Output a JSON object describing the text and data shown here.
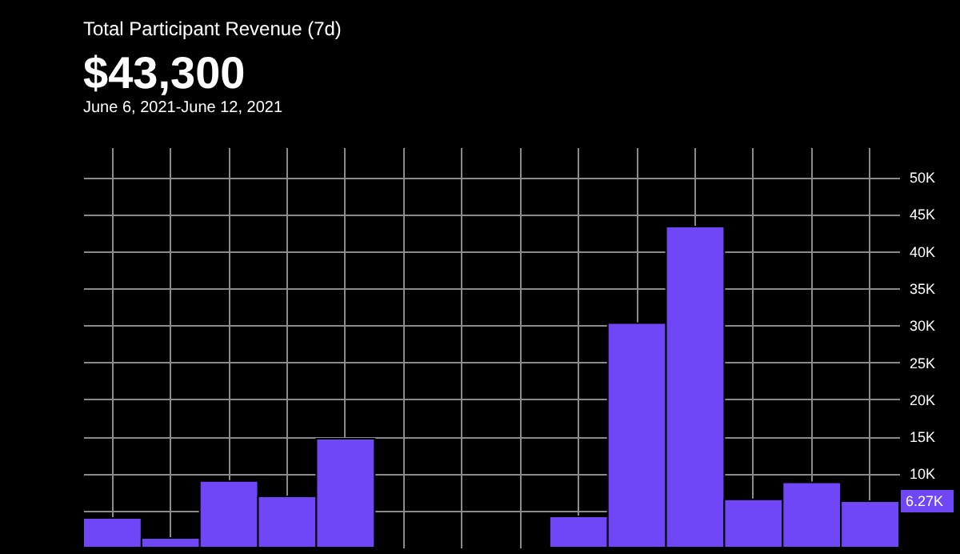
{
  "chart_data": {
    "type": "bar",
    "title": "Total Participant Revenue (7d)",
    "subtitle": "$43,300",
    "annotations": [
      "June 6, 2021-June 12, 2021",
      {
        "text": "6.27K",
        "y": 6270
      }
    ],
    "categories": [
      null,
      null,
      null,
      null,
      null,
      null,
      null,
      null,
      null,
      null,
      null,
      null,
      null,
      null
    ],
    "series": [
      {
        "color": "#7047f7",
        "values": [
          4000,
          1300,
          9000,
          6900,
          14700,
          null,
          null,
          null,
          4200,
          30300,
          43300,
          6500,
          8800,
          6270
        ]
      }
    ],
    "ylim": [
      0,
      54000
    ],
    "yticks": [
      {
        "value": 5000,
        "label": null
      },
      {
        "value": 10000,
        "label": "10K"
      },
      {
        "value": 15000,
        "label": "15K"
      },
      {
        "value": 20000,
        "label": "20K"
      },
      {
        "value": 25000,
        "label": "25K"
      },
      {
        "value": 30000,
        "label": "30K"
      },
      {
        "value": 35000,
        "label": "35K"
      },
      {
        "value": 40000,
        "label": "40K"
      },
      {
        "value": 45000,
        "label": "45K"
      },
      {
        "value": 50000,
        "label": "50K"
      }
    ],
    "grid": true,
    "legend": false
  }
}
